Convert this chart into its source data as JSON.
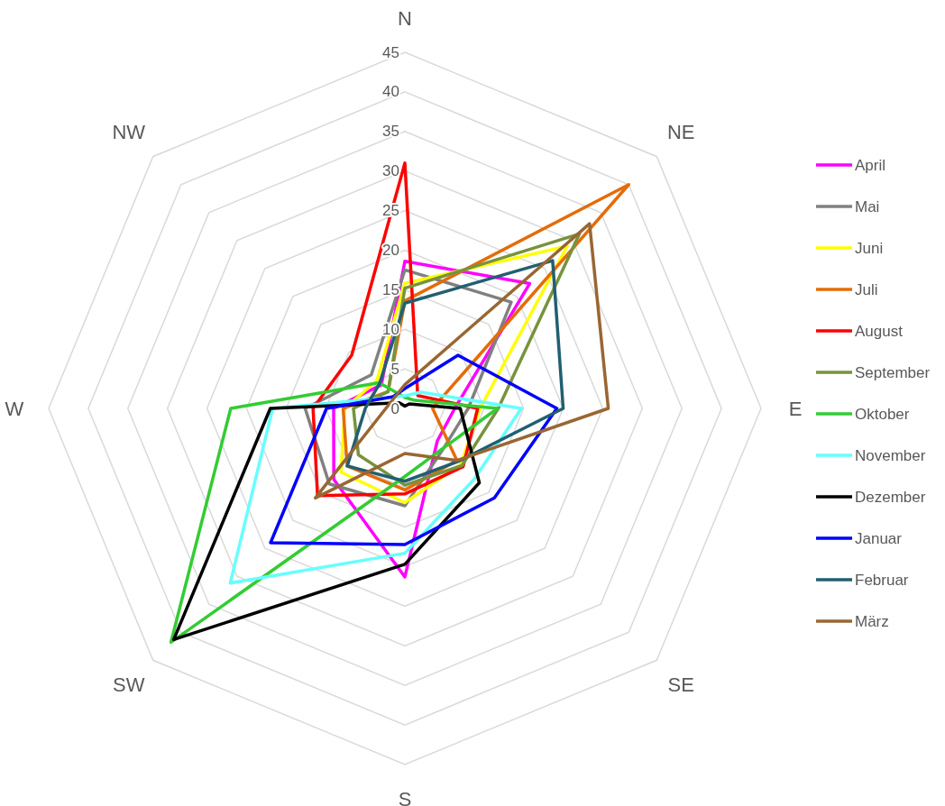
{
  "chart_data": {
    "type": "radar",
    "categories": [
      "N",
      "NE",
      "E",
      "SE",
      "S",
      "SW",
      "W",
      "NW"
    ],
    "ylim": [
      0,
      45
    ],
    "yticks": [
      0,
      5,
      10,
      15,
      20,
      25,
      30,
      35,
      40,
      45
    ],
    "grid": true,
    "legend": "right",
    "marker": "none",
    "line_style": "solid",
    "series": [
      {
        "name": "April",
        "color": "#ff00ff",
        "values": [
          18.6,
          22.3,
          6.3,
          5.8,
          21.3,
          12.7,
          9,
          4.2
        ]
      },
      {
        "name": "Mai",
        "color": "#808080",
        "values": [
          17.5,
          19,
          8,
          7,
          12.3,
          13.5,
          12.6,
          6
        ]
      },
      {
        "name": "Juni",
        "color": "#ffff00",
        "values": [
          15.8,
          29,
          9.5,
          10,
          11.9,
          11.4,
          7.6,
          5
        ]
      },
      {
        "name": "Juli",
        "color": "#e46c0a",
        "values": [
          13.6,
          40,
          3.5,
          9.3,
          10.3,
          10.3,
          7.8,
          3
        ]
      },
      {
        "name": "August",
        "color": "#ff0000",
        "values": [
          31,
          2.3,
          9.2,
          10.4,
          10.8,
          15.6,
          11.6,
          9.5
        ]
      },
      {
        "name": "September",
        "color": "#77933c",
        "values": [
          15.2,
          31.2,
          11.8,
          10.2,
          9.7,
          8.3,
          6.5,
          3
        ]
      },
      {
        "name": "Oktober",
        "color": "#33cc33",
        "values": [
          1.4,
          1.5,
          11.7,
          7,
          8.6,
          41.8,
          22,
          4.6
        ]
      },
      {
        "name": "November",
        "color": "#66ffff",
        "values": [
          1.6,
          2.9,
          14.7,
          12.5,
          18.3,
          31.2,
          16.7,
          2
        ]
      },
      {
        "name": "Dezember",
        "color": "#000000",
        "values": [
          0.3,
          0.8,
          7,
          13.3,
          19.7,
          41.3,
          17,
          1
        ]
      },
      {
        "name": "Januar",
        "color": "#0000ff",
        "values": [
          2.5,
          9.5,
          19.2,
          16,
          17.2,
          24,
          9.9,
          2.1
        ]
      },
      {
        "name": "Februar",
        "color": "#215f72",
        "values": [
          13.3,
          26.4,
          20,
          9.5,
          9.2,
          10.3,
          5,
          4.5
        ]
      },
      {
        "name": "März",
        "color": "#996633",
        "values": [
          3,
          33,
          25.7,
          9.3,
          5.7,
          16,
          2.4,
          1.9
        ]
      }
    ]
  }
}
